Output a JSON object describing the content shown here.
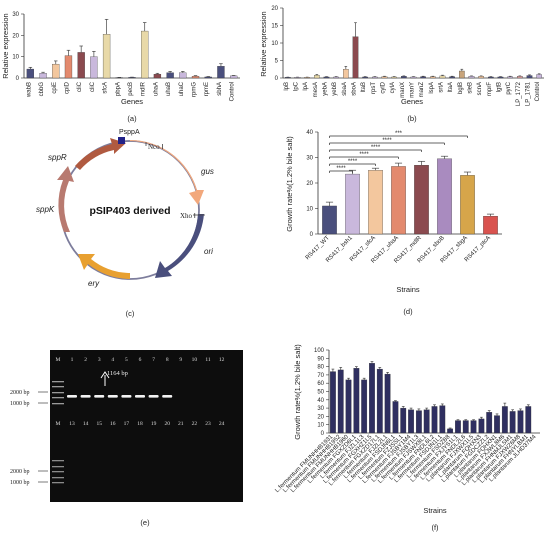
{
  "colors": {
    "navy": "#4a4f7d",
    "lavender": "#c9b8dc",
    "peach": "#f3c79e",
    "beige": "#e8d9a8",
    "salmon": "#e38a6e",
    "maroon": "#8b4a4f",
    "purple": "#a98bbf",
    "gold": "#d6a54a",
    "rose": "#e3a3a3",
    "tan": "#c9a57c",
    "red": "#d9534f",
    "orange": "#f0a35e",
    "highlight": "#e87b6e"
  },
  "chart_data": [
    {
      "id": "a",
      "panel_label": "(a)",
      "type": "bar",
      "ylabel": "Relative expression",
      "xlabel": "Genes",
      "ylim": [
        0,
        30
      ],
      "yticks": [
        0,
        10,
        20,
        30
      ],
      "categories": [
        "wabB",
        "cbbG",
        "cpiE",
        "cpiD",
        "cliC",
        "cliC",
        "sfcA",
        "pbpA",
        "pecB",
        "mdlR",
        "uhaA",
        "uhaB",
        "uhaC",
        "rpmG",
        "rpmE",
        "sbhA",
        "Control"
      ],
      "values": [
        4.2,
        2.2,
        6.5,
        10.5,
        12.0,
        10.0,
        20.5,
        0.2,
        0.3,
        22.0,
        1.8,
        2.5,
        2.5,
        0.8,
        0.5,
        5.5,
        1.0
      ],
      "errors": [
        0.8,
        0.5,
        1.5,
        2.5,
        3.0,
        2.5,
        7.0,
        0.1,
        0.1,
        4.0,
        0.4,
        0.6,
        0.6,
        0.3,
        0.2,
        1.2,
        0.2
      ],
      "colors": [
        "navy",
        "lavender",
        "peach",
        "salmon",
        "maroon",
        "lavender",
        "beige",
        "navy",
        "navy",
        "beige",
        "maroon",
        "navy",
        "lavender",
        "salmon",
        "navy",
        "navy",
        "lavender"
      ]
    },
    {
      "id": "b",
      "panel_label": "(b)",
      "type": "bar",
      "ylabel": "Relative expression",
      "xlabel": "Genes",
      "ylim": [
        0,
        20
      ],
      "yticks": [
        0,
        5,
        10,
        15,
        20
      ],
      "categories": [
        "lpB",
        "lpC",
        "lpA",
        "mesA",
        "yebA",
        "yebB",
        "sbaA",
        "sboA",
        "ltaB",
        "rpsT",
        "cylD",
        "cylA",
        "manX",
        "manY",
        "manZ",
        "lspA",
        "srtA",
        "ltaA",
        "bglB",
        "sleB",
        "scnA",
        "mprF",
        "lgtB",
        "pyrC",
        "LP_1772",
        "LP_1781",
        "Control"
      ],
      "values": [
        0.2,
        0.2,
        0.2,
        0.8,
        0.3,
        0.3,
        2.5,
        11.8,
        0.3,
        0.3,
        0.4,
        0.3,
        0.5,
        0.3,
        0.4,
        0.4,
        0.6,
        0.4,
        2.0,
        0.5,
        0.5,
        0.3,
        0.3,
        0.4,
        0.5,
        0.7,
        1.0
      ],
      "errors": [
        0.05,
        0.05,
        0.05,
        0.2,
        0.1,
        0.1,
        0.8,
        4.0,
        0.1,
        0.1,
        0.1,
        0.1,
        0.1,
        0.1,
        0.1,
        0.1,
        0.2,
        0.1,
        0.5,
        0.1,
        0.1,
        0.1,
        0.1,
        0.1,
        0.1,
        0.2,
        0.2
      ],
      "colors": [
        "navy",
        "lavender",
        "peach",
        "beige",
        "navy",
        "lavender",
        "peach",
        "maroon",
        "navy",
        "lavender",
        "peach",
        "beige",
        "navy",
        "lavender",
        "navy",
        "peach",
        "beige",
        "navy",
        "tan",
        "lavender",
        "peach",
        "navy",
        "navy",
        "lavender",
        "rose",
        "navy",
        "lavender"
      ]
    },
    {
      "id": "d",
      "panel_label": "(d)",
      "type": "bar",
      "ylabel": "Growth rate%(1.2% bile salt)",
      "xlabel": "Strains",
      "ylim": [
        0,
        40
      ],
      "yticks": [
        0,
        10,
        20,
        30,
        40
      ],
      "categories": [
        "RS417_WT",
        "RS417_bsh1",
        "RS417_sfcA",
        "RS417_uhaA",
        "RS417_mdlR",
        "RS417_sboB",
        "RS417_sbgA",
        "RS417_ptcA"
      ],
      "values": [
        11.0,
        23.5,
        25.0,
        26.5,
        27.0,
        29.5,
        23.0,
        7.0
      ],
      "errors": [
        1.5,
        1.5,
        0.8,
        1.3,
        1.5,
        1.0,
        1.3,
        0.8
      ],
      "colors": [
        "navy",
        "lavender",
        "peach",
        "salmon",
        "maroon",
        "purple",
        "gold",
        "red"
      ],
      "significance": [
        "****",
        "****",
        "****",
        "****",
        "****",
        "***"
      ]
    },
    {
      "id": "f",
      "panel_label": "(f)",
      "type": "bar",
      "ylabel": "Growth rate%(1.2% bile salt)",
      "xlabel": "Strains",
      "ylim": [
        0,
        100
      ],
      "yticks": [
        0,
        10,
        20,
        30,
        40,
        50,
        60,
        70,
        80,
        90,
        100
      ],
      "categories": [
        "L.fermentum FMUNHHB1931",
        "L.fermentum FMUNHHB1952",
        "L.fermentum FMUNHHB1960",
        "L.fermentum FGXZD6L1",
        "L.fermentum FJZL1L3",
        "L.fermentum FGXHZ1L5",
        "L.fermentum FGXZD17L1",
        "L.fermentum FJZL2L1",
        "L.fermentum FSDJN6L1",
        "L.fermentum FZJSSL1",
        "L.fermentum FJSBY1M4",
        "L.fermentum FJSBY1L3",
        "L.fermentum FJSWX8L1",
        "L.fermentum FNDL6L2",
        "L.fermentum FSDJN1L1",
        "L.fermentum FSDZB8",
        "L.fermentum FXJYS1L1",
        "L.fermentum FNDL2L6",
        "L.plantarum FJXWX1L5",
        "L.plantarum FQHXN3",
        "L.plantarum FGDCZZL2",
        "L.plantarum FQHXN1",
        "L.plantarum FXJWL8M6",
        "L.plantarum FHNMJL5M1",
        "L.plantarum FJXWZ6M8",
        "L.plantarum FHNYLBM1",
        "L.plantarum JLHD37M4"
      ],
      "values": [
        74,
        76,
        64,
        78,
        64,
        84,
        77,
        71,
        38,
        30,
        28,
        27,
        28,
        32,
        33,
        5,
        15,
        15,
        15,
        17,
        25,
        21,
        32,
        26,
        27,
        32,
        0
      ],
      "errors": [
        3,
        3,
        2,
        2,
        2,
        2,
        2,
        2,
        1,
        2,
        2,
        2,
        2,
        2,
        2,
        1,
        1,
        1,
        1,
        2,
        2,
        2,
        4,
        2,
        2,
        2,
        0
      ],
      "highlighted_count": 8
    }
  ],
  "panel_c": {
    "label": "(c)",
    "plasmid_name": "pSIP403 derived",
    "features": {
      "promoter": "PsppA",
      "site_nco": "Nco Ⅰ",
      "site_xho": "Xho Ⅰ",
      "gus": "gus",
      "ori": "ori",
      "ery": "ery",
      "sppK": "sppK",
      "sppR": "sppR"
    }
  },
  "panel_e": {
    "label": "(e)",
    "marker_label": "M",
    "lanes_top": [
      "1",
      "2",
      "3",
      "4",
      "5",
      "6",
      "7",
      "8",
      "9",
      "10",
      "11",
      "12"
    ],
    "lanes_bottom": [
      "13",
      "14",
      "15",
      "16",
      "17",
      "18",
      "19",
      "20",
      "21",
      "22",
      "23",
      "24"
    ],
    "band_label": "1164 bp",
    "ladder_labels": [
      "2000 bp",
      "1000 bp",
      "2000 bp",
      "1000 bp"
    ]
  }
}
